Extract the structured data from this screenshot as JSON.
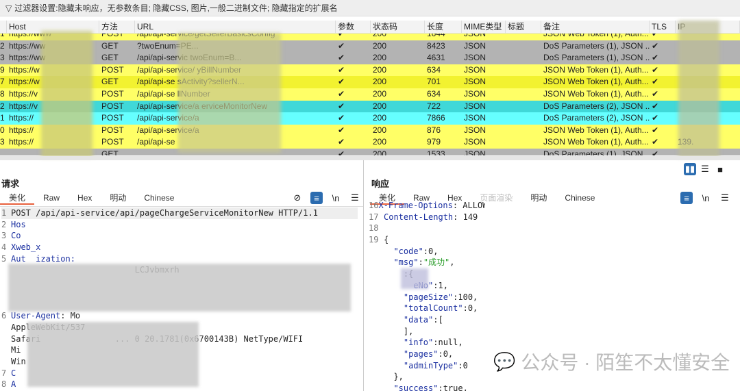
{
  "filter": {
    "icon": "filter-icon",
    "text": "过滤器设置:隐藏未响应，无参数条目; 隐藏CSS, 图片,一般二进制文件; 隐藏指定的扩展名"
  },
  "table": {
    "headers": [
      "",
      "Host",
      "方法",
      "URL",
      "参数",
      "状态码",
      "长度",
      "MIME类型",
      "标题",
      "备注",
      "TLS",
      "IP"
    ],
    "rows": [
      {
        "n": "1",
        "host": "https://www",
        "method": "POST",
        "url": "/api/api-service/getSellerBasicsConfig",
        "params": "✔",
        "status": "200",
        "len": "1644",
        "mime": "JSON",
        "title": "",
        "note": "JSON Web Token (1), Auth...",
        "tls": "✔",
        "ip": "",
        "color": "yellow"
      },
      {
        "n": "2",
        "host": "https://ww",
        "method": "GET",
        "url": "?twoEnum=PE...",
        "params": "✔",
        "status": "200",
        "len": "8423",
        "mime": "JSON",
        "title": "",
        "note": "DoS Parameters (1), JSON ...",
        "tls": "✔",
        "ip": "",
        "color": "gray"
      },
      {
        "n": "3",
        "host": "https://ww",
        "method": "GET",
        "url": "/api/api-servic                          twoEnum=B...",
        "params": "✔",
        "status": "200",
        "len": "4631",
        "mime": "JSON",
        "title": "",
        "note": "DoS Parameters (1), JSON ...",
        "tls": "✔",
        "ip": "",
        "color": "gray"
      },
      {
        "n": "9",
        "host": "https://w",
        "method": "POST",
        "url": "/api/api-service/                          yBillNumber",
        "params": "✔",
        "status": "200",
        "len": "634",
        "mime": "JSON",
        "title": "",
        "note": "JSON Web Token (1), Auth...",
        "tls": "✔",
        "ip": "",
        "color": "yellow"
      },
      {
        "n": "7",
        "host": "https://w",
        "method": "GET",
        "url": "/api/api-se                              sActivity?sellerN...",
        "params": "✔",
        "status": "200",
        "len": "701",
        "mime": "JSON",
        "title": "",
        "note": "JSON Web Token (1), Auth...",
        "tls": "✔",
        "ip": "",
        "color": "yellow2"
      },
      {
        "n": "8",
        "host": "https://v",
        "method": "POST",
        "url": "/api/api-se                               llNumber",
        "params": "✔",
        "status": "200",
        "len": "634",
        "mime": "JSON",
        "title": "",
        "note": "JSON Web Token (1), Auth...",
        "tls": "✔",
        "ip": "",
        "color": "yellow"
      },
      {
        "n": "2",
        "host": "https://v",
        "method": "POST",
        "url": "/api/api-service/a                    erviceMonitorNew",
        "params": "✔",
        "status": "200",
        "len": "722",
        "mime": "JSON",
        "title": "",
        "note": "DoS Parameters (2), JSON ...",
        "tls": "✔",
        "ip": "",
        "color": "cyan"
      },
      {
        "n": "1",
        "host": "https://",
        "method": "POST",
        "url": "/api/api-service/a",
        "params": "✔",
        "status": "200",
        "len": "7866",
        "mime": "JSON",
        "title": "",
        "note": "DoS Parameters (2), JSON ...",
        "tls": "✔",
        "ip": "",
        "color": "cyan2"
      },
      {
        "n": "0",
        "host": "https://",
        "method": "POST",
        "url": "/api/api-service/a",
        "params": "✔",
        "status": "200",
        "len": "876",
        "mime": "JSON",
        "title": "",
        "note": "JSON Web Token (1), Auth...",
        "tls": "✔",
        "ip": "",
        "color": "yellow"
      },
      {
        "n": "3",
        "host": "https://",
        "method": "POST",
        "url": "/api/api-se",
        "params": "✔",
        "status": "200",
        "len": "979",
        "mime": "JSON",
        "title": "",
        "note": "JSON Web Token (1), Auth...",
        "tls": "✔",
        "ip": "139.",
        "color": "yellow"
      },
      {
        "n": "",
        "host": "",
        "method": "GET",
        "url": "",
        "params": "✔",
        "status": "200",
        "len": "1533",
        "mime": "JSON",
        "title": "",
        "note": "DoS Parameters (1), JSON ...",
        "tls": "✔",
        "ip": "",
        "color": "gray"
      }
    ]
  },
  "request": {
    "title": "请求",
    "tabs": [
      "美化",
      "Raw",
      "Hex",
      "明动",
      "Chinese"
    ],
    "active_tab": "美化",
    "lines": [
      {
        "n": "1",
        "text": "POST /api/api-service/api/pageChargeServiceMonitorNew HTTP/1.1"
      },
      {
        "n": "2",
        "key": "Hos",
        "text": ""
      },
      {
        "n": "3",
        "key": "Co",
        "text": ""
      },
      {
        "n": "4",
        "key": "Xweb_x",
        "text": ""
      },
      {
        "n": "5",
        "key": "Aut  ization:",
        "text": ""
      },
      {
        "n": "",
        "text": "                         LCJvbmxrh"
      },
      {
        "n": "",
        "text": ""
      },
      {
        "n": "",
        "text": ""
      },
      {
        "n": "",
        "text": ""
      },
      {
        "n": "6",
        "key": "User-Agent",
        "text": ": Mo"
      },
      {
        "n": "",
        "text": "AppleWebKit/537"
      },
      {
        "n": "",
        "text": "Safari               ... 0 20.1781(0x6700143B) NetType/WIFI"
      },
      {
        "n": "",
        "text": "Mi"
      },
      {
        "n": "",
        "text": "Win"
      },
      {
        "n": "7",
        "key": "C",
        "text": ""
      },
      {
        "n": "8",
        "key": "A",
        "text": ""
      }
    ]
  },
  "response": {
    "title": "响应",
    "tabs": [
      "美化",
      "Raw",
      "Hex",
      "页面渲染",
      "明动",
      "Chinese"
    ],
    "active_tab": "美化",
    "lines": [
      {
        "n": "16",
        "key": "X-Frame-Options",
        "text": ": ALLOWALL"
      },
      {
        "n": "17",
        "key": "Content-Length",
        "text": ": 149"
      },
      {
        "n": "18",
        "text": ""
      },
      {
        "n": "19",
        "text": "{"
      },
      {
        "n": "",
        "key": "  \"code\"",
        "text": ":0,"
      },
      {
        "n": "",
        "key": "  \"msg\"",
        "text": ":",
        "str": "\"成功\"",
        "tail": ","
      },
      {
        "n": "",
        "key": "  ",
        "text": "  :{"
      },
      {
        "n": "",
        "key": "      eNo\"",
        "text": ":1,"
      },
      {
        "n": "",
        "key": "    \"pageSize\"",
        "text": ":100,"
      },
      {
        "n": "",
        "key": "    \"totalCount\"",
        "text": ":0,"
      },
      {
        "n": "",
        "key": "    \"data\"",
        "text": ":["
      },
      {
        "n": "",
        "text": "    ],"
      },
      {
        "n": "",
        "key": "    \"info\"",
        "text": ":null,"
      },
      {
        "n": "",
        "key": "    \"pages\"",
        "text": ":0,"
      },
      {
        "n": "",
        "key": "    \"adminType\"",
        "text": ":0"
      },
      {
        "n": "",
        "text": "  },"
      },
      {
        "n": "",
        "key": "  \"success\"",
        "text": ":true,"
      }
    ]
  },
  "watermark": "公众号 · 陌笙不太懂安全"
}
